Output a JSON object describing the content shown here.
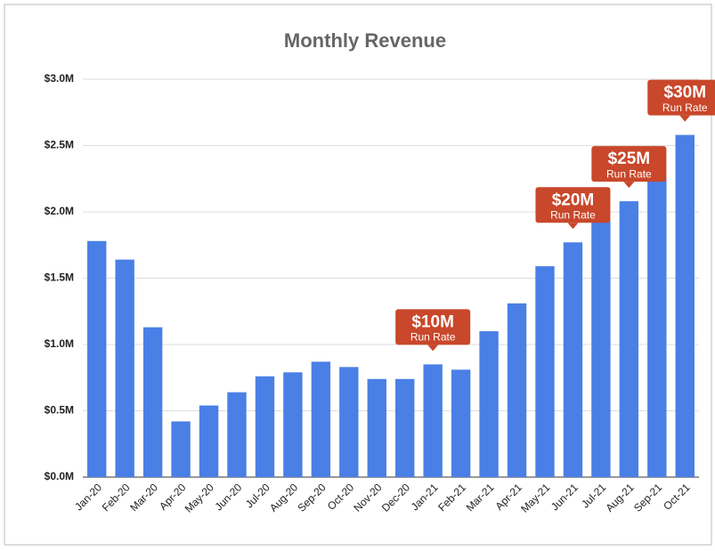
{
  "chart_data": {
    "type": "bar",
    "title": "Monthly Revenue",
    "categories": [
      "Jan-20",
      "Feb-20",
      "Mar-20",
      "Apr-20",
      "May-20",
      "Jun-20",
      "Jul-20",
      "Aug-20",
      "Sep-20",
      "Oct-20",
      "Nov-20",
      "Dec-20",
      "Jan-21",
      "Feb-21",
      "Mar-21",
      "Apr-21",
      "May-21",
      "Jun-21",
      "Jul-21",
      "Aug-21",
      "Sep-21",
      "Oct-21"
    ],
    "values": [
      1.78,
      1.64,
      1.13,
      0.42,
      0.54,
      0.64,
      0.76,
      0.79,
      0.87,
      0.83,
      0.74,
      0.74,
      0.85,
      0.81,
      1.1,
      1.31,
      1.59,
      1.77,
      1.93,
      2.08,
      2.26,
      2.58
    ],
    "color": "#4a7fe6",
    "ylim": [
      0,
      3
    ],
    "yticks": [
      {
        "value": 0,
        "label": "$0.0M"
      },
      {
        "value": 0.5,
        "label": "$0.5M"
      },
      {
        "value": 1,
        "label": "$1.0M"
      },
      {
        "value": 1.5,
        "label": "$1.5M"
      },
      {
        "value": 2,
        "label": "$2.0M"
      },
      {
        "value": 2.5,
        "label": "$2.5M"
      },
      {
        "value": 3,
        "label": "$3.0M"
      }
    ],
    "grid": true,
    "annotations": [
      {
        "category": "Jan-21",
        "text": "$10M",
        "subtext": "Run Rate"
      },
      {
        "category": "Jun-21",
        "text": "$20M",
        "subtext": "Run Rate"
      },
      {
        "category": "Aug-21",
        "text": "$25M",
        "subtext": "Run Rate"
      },
      {
        "category": "Oct-21",
        "text": "$30M",
        "subtext": "Run Rate"
      }
    ],
    "annotation_color": "#c9472a"
  }
}
